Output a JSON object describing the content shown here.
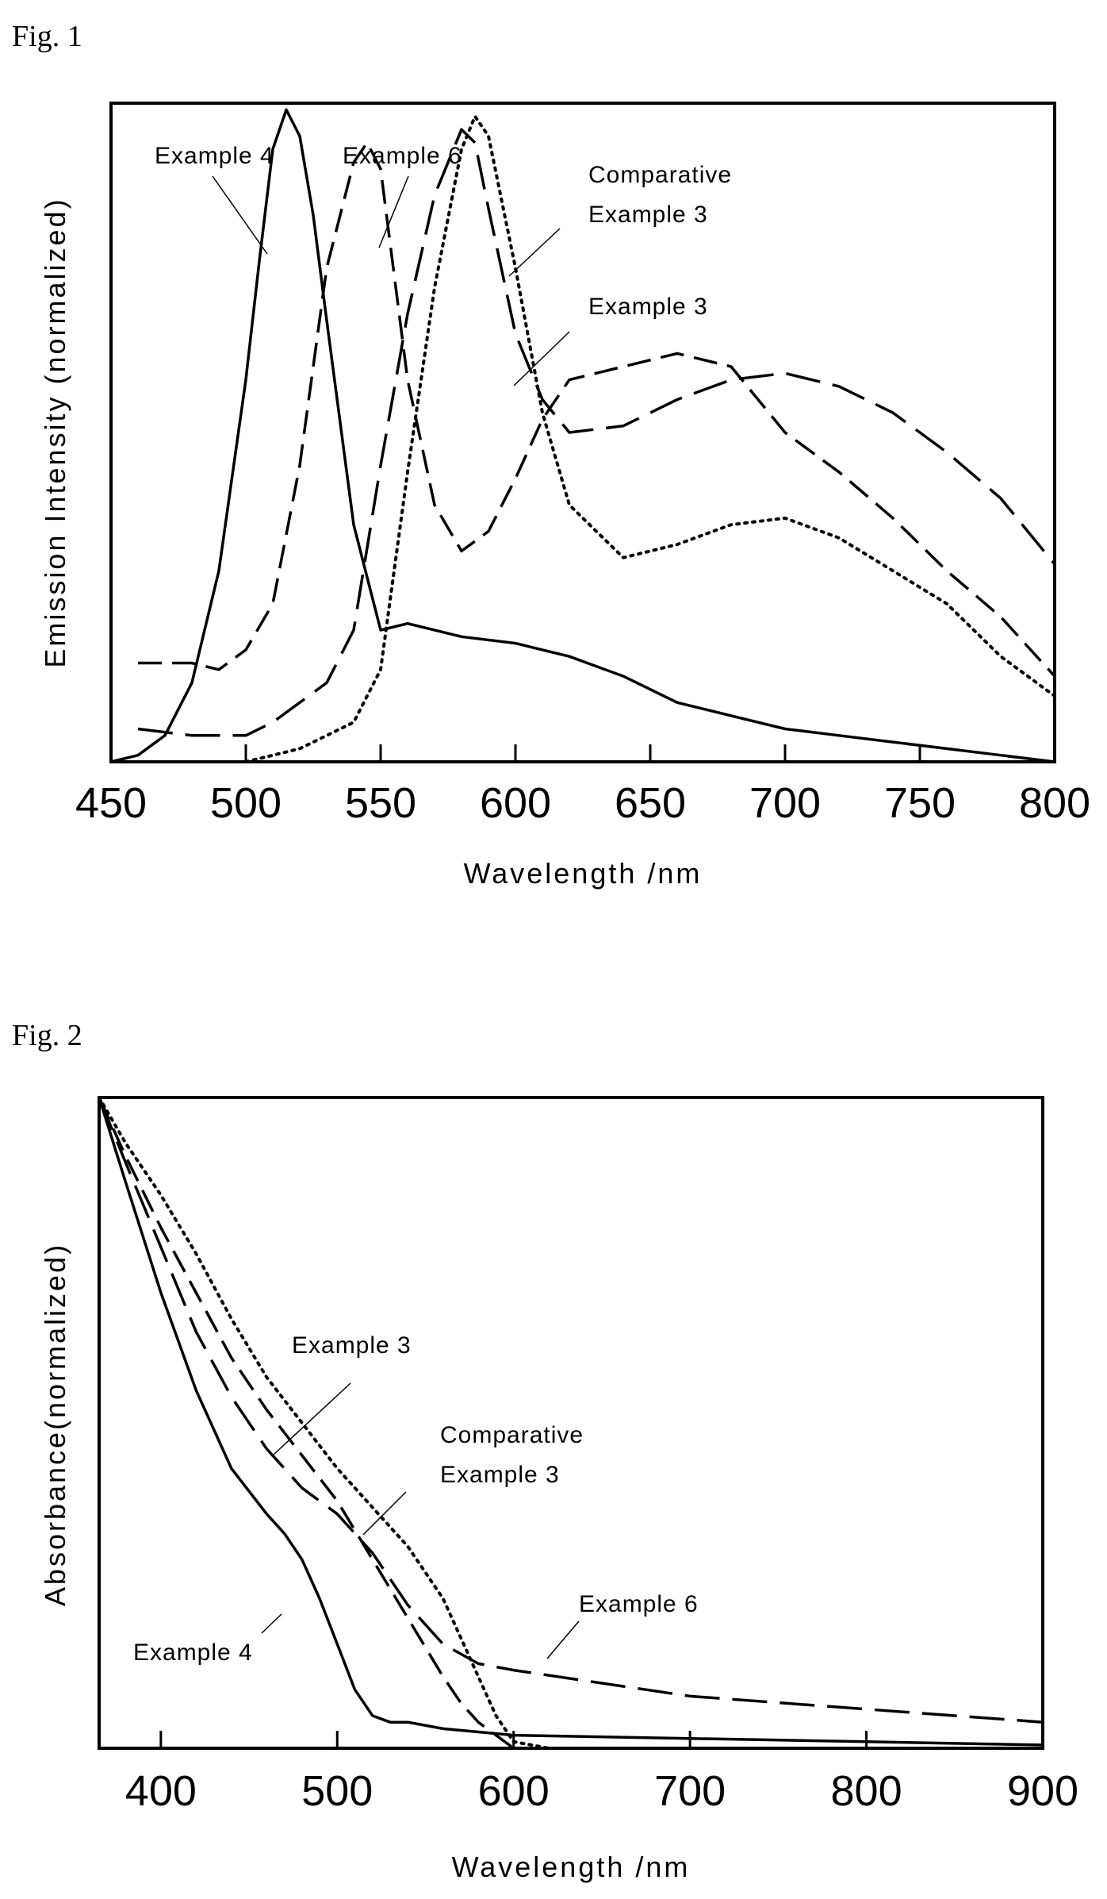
{
  "figures": [
    {
      "label": "Fig.  1"
    },
    {
      "label": "Fig.  2"
    }
  ],
  "chart_data": [
    {
      "type": "line",
      "title": "",
      "xlabel": "Wavelength /nm",
      "ylabel": "Emission Intensity (normalized)",
      "xlim": [
        450,
        800
      ],
      "ylim": [
        0,
        1.0
      ],
      "xticks": [
        450,
        500,
        550,
        600,
        650,
        700,
        750,
        800
      ],
      "show_y_ticks": false,
      "grid": false,
      "legend": "none",
      "series": [
        {
          "name": "Example 4",
          "style": "solid",
          "x": [
            450,
            460,
            470,
            480,
            490,
            500,
            505,
            510,
            515,
            520,
            525,
            530,
            540,
            550,
            560,
            580,
            600,
            610,
            620,
            640,
            660,
            680,
            700,
            720,
            740,
            760,
            780,
            800
          ],
          "y": [
            0.0,
            0.01,
            0.04,
            0.12,
            0.29,
            0.58,
            0.76,
            0.93,
            0.99,
            0.95,
            0.83,
            0.67,
            0.36,
            0.2,
            0.21,
            0.19,
            0.18,
            0.17,
            0.16,
            0.13,
            0.09,
            0.07,
            0.05,
            0.04,
            0.03,
            0.02,
            0.01,
            0.0
          ]
        },
        {
          "name": "Example 6",
          "style": "dashed",
          "x": [
            460,
            480,
            490,
            500,
            510,
            520,
            530,
            540,
            545,
            550,
            560,
            570,
            580,
            590,
            600,
            610,
            620,
            640,
            660,
            680,
            700,
            720,
            740,
            760,
            780,
            800
          ],
          "y": [
            0.15,
            0.15,
            0.14,
            0.17,
            0.24,
            0.45,
            0.75,
            0.91,
            0.94,
            0.9,
            0.58,
            0.39,
            0.32,
            0.35,
            0.43,
            0.52,
            0.58,
            0.6,
            0.62,
            0.6,
            0.5,
            0.44,
            0.37,
            0.29,
            0.22,
            0.13
          ]
        },
        {
          "name": "Example 3",
          "style": "long-dash",
          "x": [
            460,
            480,
            500,
            510,
            520,
            530,
            540,
            550,
            560,
            570,
            580,
            585,
            590,
            600,
            610,
            620,
            640,
            660,
            680,
            700,
            720,
            740,
            760,
            780,
            800
          ],
          "y": [
            0.05,
            0.04,
            0.04,
            0.06,
            0.09,
            0.12,
            0.2,
            0.45,
            0.68,
            0.86,
            0.96,
            0.94,
            0.84,
            0.65,
            0.55,
            0.5,
            0.51,
            0.55,
            0.58,
            0.59,
            0.57,
            0.53,
            0.47,
            0.4,
            0.3
          ]
        },
        {
          "name": "Comparative Example 3",
          "style": "dotted",
          "x": [
            450,
            500,
            520,
            540,
            550,
            560,
            570,
            580,
            585,
            590,
            600,
            610,
            620,
            640,
            660,
            680,
            700,
            720,
            740,
            760,
            780,
            800
          ],
          "y": [
            0.0,
            0.0,
            0.02,
            0.06,
            0.14,
            0.44,
            0.72,
            0.93,
            0.98,
            0.95,
            0.75,
            0.53,
            0.39,
            0.31,
            0.33,
            0.36,
            0.37,
            0.34,
            0.29,
            0.24,
            0.16,
            0.1
          ]
        }
      ],
      "annotations": [
        {
          "text": "Example 4"
        },
        {
          "text": "Example 6"
        },
        {
          "text": "Comparative"
        },
        {
          "text": "Example 3"
        },
        {
          "text": "Example 3"
        }
      ]
    },
    {
      "type": "line",
      "title": "",
      "xlabel": "Wavelength /nm",
      "ylabel": "Absorbance(normalized)",
      "xlim": [
        365,
        900
      ],
      "ylim": [
        0,
        1.0
      ],
      "xticks": [
        400,
        500,
        600,
        700,
        800,
        900
      ],
      "show_y_ticks": false,
      "grid": false,
      "legend": "none",
      "series": [
        {
          "name": "Example 4",
          "style": "solid",
          "x": [
            365,
            380,
            400,
            420,
            440,
            460,
            470,
            480,
            490,
            500,
            510,
            520,
            530,
            540,
            560,
            580,
            600,
            700,
            800,
            900
          ],
          "y": [
            1.0,
            0.87,
            0.7,
            0.55,
            0.43,
            0.36,
            0.33,
            0.29,
            0.23,
            0.16,
            0.09,
            0.05,
            0.04,
            0.04,
            0.03,
            0.025,
            0.02,
            0.015,
            0.01,
            0.005
          ]
        },
        {
          "name": "Example 6",
          "style": "long-dash",
          "x": [
            365,
            380,
            400,
            420,
            440,
            460,
            480,
            500,
            520,
            540,
            560,
            580,
            600,
            650,
            700,
            750,
            800,
            850,
            900
          ],
          "y": [
            1.0,
            0.9,
            0.77,
            0.64,
            0.54,
            0.46,
            0.4,
            0.36,
            0.3,
            0.22,
            0.16,
            0.13,
            0.12,
            0.1,
            0.08,
            0.07,
            0.06,
            0.05,
            0.04
          ]
        },
        {
          "name": "Example 3",
          "style": "dashed",
          "x": [
            365,
            380,
            400,
            420,
            440,
            460,
            480,
            500,
            520,
            540,
            560,
            570,
            580,
            590,
            600,
            620,
            700,
            800,
            900
          ],
          "y": [
            1.0,
            0.91,
            0.8,
            0.7,
            0.6,
            0.52,
            0.45,
            0.38,
            0.29,
            0.2,
            0.11,
            0.07,
            0.04,
            0.02,
            0.0,
            0.0,
            0.0,
            0.0,
            0.0
          ]
        },
        {
          "name": "Comparative Example 3",
          "style": "dotted",
          "x": [
            365,
            380,
            400,
            420,
            440,
            460,
            480,
            500,
            520,
            540,
            560,
            570,
            580,
            590,
            600,
            620,
            650
          ],
          "y": [
            1.0,
            0.93,
            0.85,
            0.76,
            0.66,
            0.57,
            0.5,
            0.43,
            0.37,
            0.31,
            0.23,
            0.17,
            0.11,
            0.05,
            0.01,
            0.0,
            0.0
          ]
        }
      ],
      "annotations": [
        {
          "text": "Example 3"
        },
        {
          "text": "Comparative"
        },
        {
          "text": "Example 3"
        },
        {
          "text": "Example 6"
        },
        {
          "text": "Example 4"
        }
      ]
    }
  ]
}
